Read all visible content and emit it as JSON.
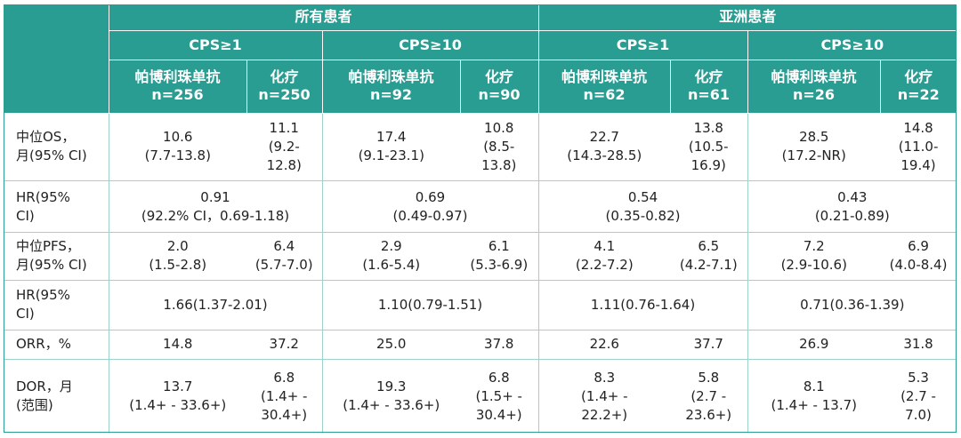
{
  "header": {
    "group_all": "所有患者",
    "group_asia": "亚洲患者",
    "cps1": "CPS≥1",
    "cps10": "CPS≥10",
    "pembro": "帕博利珠单抗",
    "chemo": "化疗",
    "n": {
      "all_cps1_pembro": "n=256",
      "all_cps1_chemo": "n=250",
      "all_cps10_pembro": "n=92",
      "all_cps10_chemo": "n=90",
      "asia_cps1_pembro": "n=62",
      "asia_cps1_chemo": "n=61",
      "asia_cps10_pembro": "n=26",
      "asia_cps10_chemo": "n=22"
    }
  },
  "rows": {
    "os": {
      "label_1": "中位OS，",
      "label_2": "月(95% CI)",
      "c1a": "10.6",
      "c1b": "(7.7-13.8)",
      "c2a": "11.1",
      "c2b": "(9.2-",
      "c2c": "12.8)",
      "c3a": "17.4",
      "c3b": "(9.1-23.1)",
      "c4a": "10.8",
      "c4b": "(8.5-",
      "c4c": "13.8)",
      "c5a": "22.7",
      "c5b": "(14.3-28.5)",
      "c6a": "13.8",
      "c6b": "(10.5-",
      "c6c": "16.9)",
      "c7a": "28.5",
      "c7b": "(17.2-NR)",
      "c8a": "14.8",
      "c8b": "(11.0-",
      "c8c": "19.4)"
    },
    "hr_os": {
      "label_1": "HR(95%",
      "label_2": "CI)",
      "g1a": "0.91",
      "g1b": "(92.2% CI，0.69-1.18)",
      "g2a": "0.69",
      "g2b": "(0.49-0.97)",
      "g3a": "0.54",
      "g3b": "(0.35-0.82)",
      "g4a": "0.43",
      "g4b": "(0.21-0.89)"
    },
    "pfs": {
      "label_1": "中位PFS，",
      "label_2": "月(95% CI)",
      "c1a": "2.0",
      "c1b": "(1.5-2.8)",
      "c2a": "6.4",
      "c2b": "(5.7-7.0)",
      "c3a": "2.9",
      "c3b": "(1.6-5.4)",
      "c4a": "6.1",
      "c4b": "(5.3-6.9)",
      "c5a": "4.1",
      "c5b": "(2.2-7.2)",
      "c6a": "6.5",
      "c6b": "(4.2-7.1)",
      "c7a": "7.2",
      "c7b": "(2.9-10.6)",
      "c8a": "6.9",
      "c8b": "(4.0-8.4)"
    },
    "hr_pfs": {
      "label_1": "HR(95%",
      "label_2": "CI)",
      "g1": "1.66(1.37-2.01)",
      "g2": "1.10(0.79-1.51)",
      "g3": "1.11(0.76-1.64)",
      "g4": "0.71(0.36-1.39)"
    },
    "orr": {
      "label": "ORR，%",
      "c1": "14.8",
      "c2": "37.2",
      "c3": "25.0",
      "c4": "37.8",
      "c5": "22.6",
      "c6": "37.7",
      "c7": "26.9",
      "c8": "31.8"
    },
    "dor": {
      "label_1": "DOR，月",
      "label_2": "(范围)",
      "c1a": "13.7",
      "c1b": "(1.4+ - 33.6+)",
      "c2a": "6.8",
      "c2b": "(1.4+ -",
      "c2c": "30.4+)",
      "c3a": "19.3",
      "c3b": "(1.4+ - 33.6+)",
      "c4a": "6.8",
      "c4b": "(1.5+ -",
      "c4c": "30.4+)",
      "c5a": "8.3",
      "c5b": "(1.4+ -",
      "c5c": "22.2+)",
      "c6a": "5.8",
      "c6b": "(2.7 -",
      "c6c": "23.6+)",
      "c7a": "8.1",
      "c7b": "(1.4+ - 13.7)",
      "c8a": "5.3",
      "c8b": "(2.7 -",
      "c8c": "7.0)"
    }
  }
}
